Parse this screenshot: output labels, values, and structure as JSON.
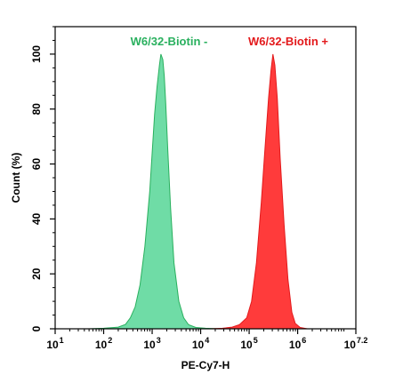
{
  "chart_data": {
    "type": "area",
    "xlabel": "PE-Cy7-H",
    "ylabel": "Count  (%)",
    "x_scale": "log10",
    "xlim_exponent": [
      1,
      7.2
    ],
    "ylim": [
      0,
      110
    ],
    "x_ticks": [
      {
        "base": "10",
        "exp": "1",
        "value": 1
      },
      {
        "base": "10",
        "exp": "2",
        "value": 2
      },
      {
        "base": "10",
        "exp": "3",
        "value": 3
      },
      {
        "base": "10",
        "exp": "4",
        "value": 4
      },
      {
        "base": "10",
        "exp": "5",
        "value": 5
      },
      {
        "base": "10",
        "exp": "6",
        "value": 6
      },
      {
        "base": "10",
        "exp": "7.2",
        "value": 7.2
      }
    ],
    "y_ticks": [
      "0",
      "20",
      "40",
      "60",
      "80",
      "100"
    ],
    "y_tick_values": [
      0,
      20,
      40,
      60,
      80,
      100
    ],
    "grid": false,
    "legend_placement": "top",
    "series": [
      {
        "name": "W6/32-Biotin -",
        "color": "#29b05e",
        "fill": "#6fdca6",
        "x_log10": [
          1.7,
          2.0,
          2.3,
          2.45,
          2.55,
          2.65,
          2.75,
          2.85,
          2.95,
          3.0,
          3.05,
          3.1,
          3.15,
          3.18,
          3.22,
          3.25,
          3.28,
          3.32,
          3.38,
          3.45,
          3.55,
          3.65,
          3.75,
          3.9,
          4.1,
          4.4
        ],
        "y": [
          0,
          0.2,
          0.6,
          1.6,
          4,
          8,
          16,
          30,
          50,
          64,
          78,
          88,
          96,
          100,
          98,
          92,
          82,
          66,
          44,
          24,
          10,
          4,
          1.5,
          0.5,
          0.2,
          0
        ]
      },
      {
        "name": "W6/32-Biotin +",
        "color": "#e31a1c",
        "fill": "#ff3b3b",
        "x_log10": [
          4.2,
          4.45,
          4.65,
          4.8,
          4.95,
          5.05,
          5.15,
          5.25,
          5.32,
          5.4,
          5.45,
          5.49,
          5.53,
          5.58,
          5.64,
          5.72,
          5.8,
          5.88,
          5.95,
          6.05,
          6.2
        ],
        "y": [
          0,
          0.2,
          0.6,
          1.5,
          4,
          10,
          24,
          46,
          64,
          84,
          94,
          100,
          96,
          84,
          62,
          38,
          18,
          6,
          2,
          0.5,
          0
        ]
      }
    ]
  }
}
